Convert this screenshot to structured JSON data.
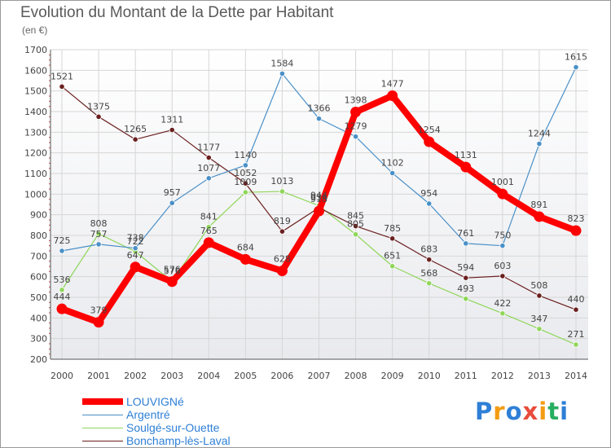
{
  "title": "Evolution du Montant de la Dette par Habitant",
  "subtitle": "(en €)",
  "logo": {
    "text": "Proxiti",
    "letters": [
      "P",
      "r",
      "o",
      "x",
      "i",
      "t",
      "i"
    ],
    "colors": [
      "#2e7fd6",
      "#f39c12",
      "#2e7fd6",
      "#e74c3c",
      "#f39c12",
      "#27ae60",
      "#2e7fd6"
    ]
  },
  "chart_data": {
    "type": "line",
    "title": "Evolution du Montant de la Dette par Habitant",
    "subtitle": "(en €)",
    "x": [
      "2000",
      "2001",
      "2002",
      "2003",
      "2004",
      "2005",
      "2006",
      "2007",
      "2008",
      "2009",
      "2010",
      "2011",
      "2012",
      "2013",
      "2014"
    ],
    "ylim": [
      200,
      1700
    ],
    "yticks": [
      200,
      300,
      400,
      500,
      600,
      700,
      800,
      900,
      1000,
      1100,
      1200,
      1300,
      1400,
      1500,
      1600,
      1700
    ],
    "grid": true,
    "legend_position": "bottom-left",
    "series": [
      {
        "name": "LOUVIGNé",
        "color": "#ff0000",
        "values": [
          444,
          379,
          647,
          576,
          765,
          684,
          628,
          918,
          1398,
          1477,
          1254,
          1131,
          1001,
          891,
          823
        ]
      },
      {
        "name": "Argentré",
        "color": "#4a90c8",
        "values": [
          725,
          757,
          738,
          957,
          1077,
          1140,
          1584,
          1366,
          1279,
          1102,
          954,
          761,
          750,
          1244,
          1615
        ]
      },
      {
        "name": "Soulgé-sur-Ouette",
        "color": "#8fd65a",
        "values": [
          536,
          808,
          722,
          576,
          841,
          1009,
          1013,
          944,
          805,
          651,
          568,
          493,
          422,
          347,
          271
        ]
      },
      {
        "name": "Bonchamp-lès-Laval",
        "color": "#6b1f1f",
        "values": [
          1521,
          1375,
          1265,
          1311,
          1177,
          1052,
          819,
          934,
          845,
          785,
          683,
          594,
          603,
          508,
          440
        ]
      }
    ]
  }
}
